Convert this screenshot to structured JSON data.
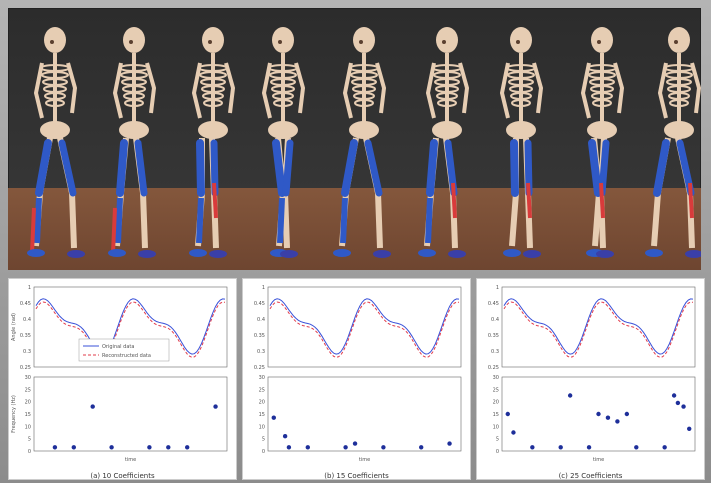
{
  "figure": {
    "panels": [
      {
        "caption": "(a) 10 Coefficients",
        "legend": [
          "Original data",
          "Reconstructed data"
        ],
        "top_ylabel": "Angle (rad)",
        "bottom_ylabel": "Frequency (Hz)",
        "top_yticks": [
          "1",
          "0.45",
          "0.4",
          "0.35",
          "0.3",
          "0.25"
        ],
        "bottom_yticks": [
          "30",
          "25",
          "20",
          "15",
          "10",
          "5",
          "0"
        ],
        "xlabel": "time",
        "markers": [
          [
            0.3,
            0.6
          ],
          [
            0.95,
            0.6
          ],
          [
            0.2,
            0.05
          ],
          [
            0.4,
            0.05
          ],
          [
            0.6,
            0.05
          ],
          [
            0.8,
            0.05
          ],
          [
            0.1,
            0.05
          ],
          [
            0.7,
            0.05
          ]
        ]
      },
      {
        "caption": "(b) 15 Coefficients",
        "legend": [],
        "top_ylabel": "",
        "bottom_ylabel": "",
        "top_yticks": [
          "1",
          "0.45",
          "0.4",
          "0.35",
          "0.3",
          "0.25"
        ],
        "bottom_yticks": [
          "30",
          "25",
          "20",
          "15",
          "10",
          "5",
          "0"
        ],
        "xlabel": "time",
        "markers": [
          [
            0.02,
            0.45
          ],
          [
            0.08,
            0.2
          ],
          [
            0.45,
            0.1
          ],
          [
            0.95,
            0.1
          ],
          [
            0.2,
            0.05
          ],
          [
            0.4,
            0.05
          ],
          [
            0.6,
            0.05
          ],
          [
            0.8,
            0.05
          ],
          [
            0.1,
            0.05
          ]
        ]
      },
      {
        "caption": "(c) 25 Coefficients",
        "legend": [],
        "top_ylabel": "",
        "bottom_ylabel": "",
        "top_yticks": [
          "1",
          "0.45",
          "0.4",
          "0.35",
          "0.3",
          "0.25"
        ],
        "bottom_yticks": [
          "30",
          "25",
          "20",
          "15",
          "10",
          "5",
          "0"
        ],
        "xlabel": "time",
        "markers": [
          [
            0.02,
            0.5
          ],
          [
            0.05,
            0.25
          ],
          [
            0.35,
            0.75
          ],
          [
            0.5,
            0.5
          ],
          [
            0.55,
            0.45
          ],
          [
            0.6,
            0.4
          ],
          [
            0.65,
            0.5
          ],
          [
            0.9,
            0.75
          ],
          [
            0.95,
            0.6
          ],
          [
            0.92,
            0.65
          ],
          [
            0.98,
            0.3
          ],
          [
            0.15,
            0.05
          ],
          [
            0.3,
            0.05
          ],
          [
            0.45,
            0.05
          ],
          [
            0.7,
            0.05
          ],
          [
            0.85,
            0.05
          ]
        ]
      }
    ]
  },
  "colors": {
    "original": "#3a52d9",
    "reconstructed": "#e23b4b",
    "muscle_blue": "#2f59c7",
    "muscle_red": "#d93b3b",
    "floor": "#7c523b",
    "background": "#2c2c2c"
  }
}
